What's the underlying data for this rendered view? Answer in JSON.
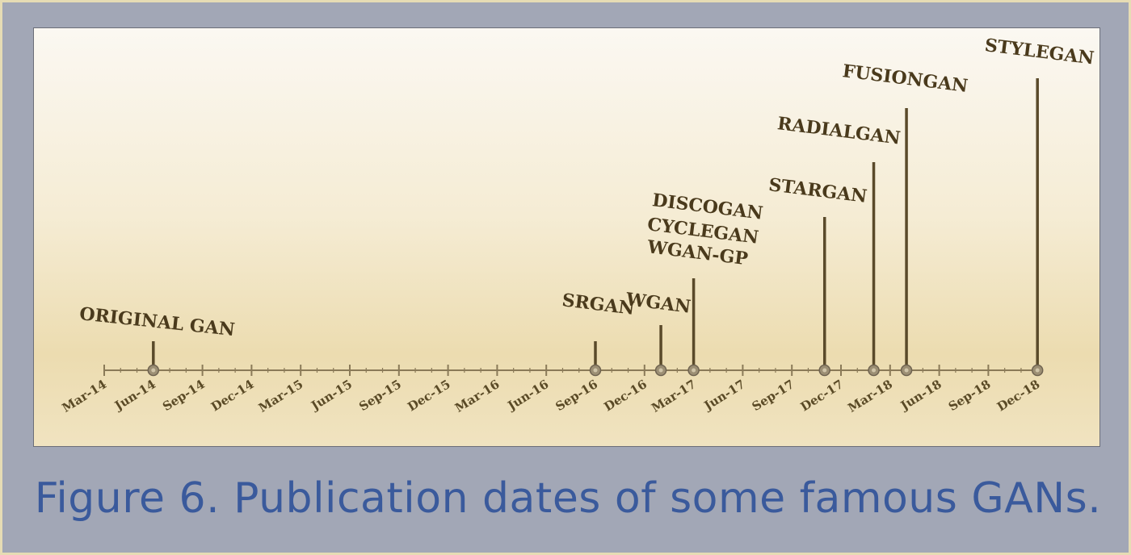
{
  "figure": {
    "caption": "Figure 6. Publication dates of some famous GANs."
  },
  "chart_data": {
    "type": "timeline",
    "x_axis": {
      "ticks": [
        "Mar-14",
        "Jun-14",
        "Sep-14",
        "Dec-14",
        "Mar-15",
        "Jun-15",
        "Sep-15",
        "Dec-15",
        "Mar-16",
        "Jun-16",
        "Sep-16",
        "Dec-16",
        "Mar-17",
        "Jun-17",
        "Sep-17",
        "Dec-17",
        "Mar-18",
        "Jun-18",
        "Sep-18",
        "Dec-18"
      ],
      "range": [
        "2014-03",
        "2018-12"
      ]
    },
    "events": [
      {
        "label": "ORIGINAL GAN",
        "date": "2014-06"
      },
      {
        "label": "SRGAN",
        "date": "2016-09"
      },
      {
        "label": "WGAN",
        "date": "2017-01"
      },
      {
        "labels": [
          "DISCOGAN",
          "CYCLEGAN",
          "WGAN-GP"
        ],
        "date": "2017-03"
      },
      {
        "label": "STARGAN",
        "date": "2017-11"
      },
      {
        "label": "RADIALGAN",
        "date": "2018-02"
      },
      {
        "label": "FUSIONGAN",
        "date": "2018-04"
      },
      {
        "label": "STYLEGAN",
        "date": "2018-12"
      }
    ],
    "colors": {
      "axis": "#8a7a58",
      "stem": "#5a4a2a",
      "label": "#4a3a1c",
      "caption": "#3a5a9c"
    }
  }
}
